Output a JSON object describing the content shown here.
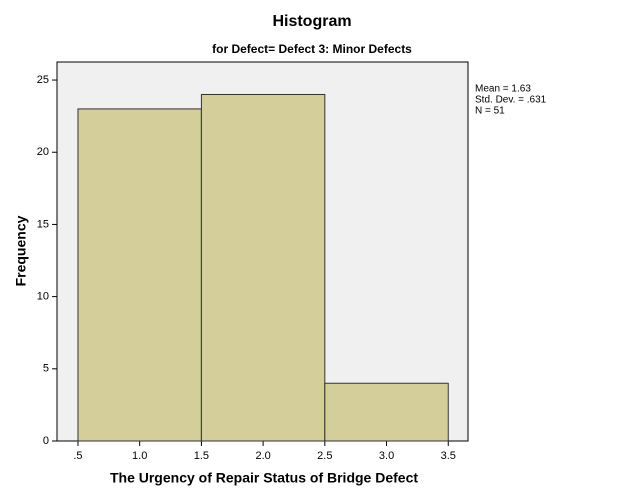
{
  "chart_data": {
    "type": "histogram",
    "title": "Histogram",
    "subtitle": "for Defect= Defect 3: Minor Defects",
    "x_label": "The Urgency of Repair Status of Bridge Defect",
    "y_label": "Frequency",
    "bins": [
      0.5,
      1.5,
      2.5,
      3.5
    ],
    "values": [
      23,
      24,
      4
    ],
    "color": "#d3ce9a",
    "xlim": [
      0.33,
      3.66
    ],
    "ylim": [
      0,
      26.25
    ],
    "xticks": [
      {
        "value": 0.5,
        "label": ".5"
      },
      {
        "value": 1,
        "label": "1.0"
      },
      1.5,
      {
        "value": 2,
        "label": "2.0"
      },
      2.5,
      {
        "value": 3,
        "label": "3.0"
      },
      3.5
    ],
    "yticks": [
      0,
      5,
      10,
      15,
      20,
      25
    ],
    "grid": false,
    "stats": [
      "Mean = 1.63",
      "Std. Dev. = .631",
      "N = 51"
    ]
  }
}
